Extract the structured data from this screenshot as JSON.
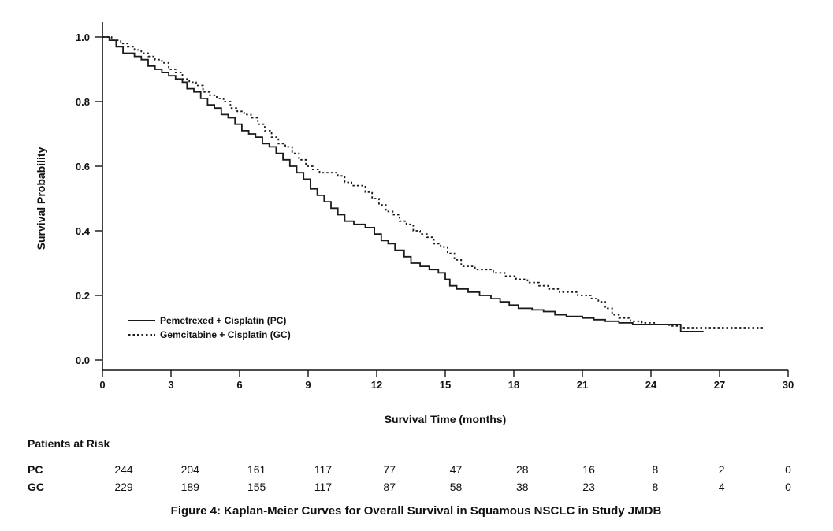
{
  "colors": {
    "line": "#1a1a1a",
    "text": "#111111",
    "background": "#ffffff"
  },
  "chart_data": {
    "type": "line",
    "subtype": "kaplan-meier-step",
    "title": "Figure 4: Kaplan-Meier Curves for Overall Survival in Squamous NSCLC in Study JMDB",
    "xlabel": "Survival Time (months)",
    "ylabel": "Survival Probability",
    "xlim": [
      0,
      30
    ],
    "ylim": [
      0.0,
      1.0
    ],
    "x_ticks": [
      0,
      3,
      6,
      9,
      12,
      15,
      18,
      21,
      24,
      27,
      30
    ],
    "y_ticks": [
      0.0,
      0.2,
      0.4,
      0.6,
      0.8,
      1.0
    ],
    "grid": false,
    "legend_position": "lower-left-inside",
    "series": [
      {
        "name": "Pemetrexed + Cisplatin (PC)",
        "line_style": "solid",
        "color": "#1a1a1a",
        "step": [
          [
            0,
            1.0
          ],
          [
            0.3,
            0.99
          ],
          [
            0.6,
            0.97
          ],
          [
            0.9,
            0.95
          ],
          [
            1.4,
            0.94
          ],
          [
            1.7,
            0.93
          ],
          [
            2.0,
            0.91
          ],
          [
            2.3,
            0.9
          ],
          [
            2.6,
            0.89
          ],
          [
            2.9,
            0.88
          ],
          [
            3.2,
            0.87
          ],
          [
            3.5,
            0.86
          ],
          [
            3.7,
            0.84
          ],
          [
            4.0,
            0.83
          ],
          [
            4.3,
            0.81
          ],
          [
            4.6,
            0.79
          ],
          [
            4.9,
            0.78
          ],
          [
            5.2,
            0.76
          ],
          [
            5.5,
            0.75
          ],
          [
            5.8,
            0.73
          ],
          [
            6.1,
            0.71
          ],
          [
            6.4,
            0.7
          ],
          [
            6.7,
            0.69
          ],
          [
            7.0,
            0.67
          ],
          [
            7.3,
            0.66
          ],
          [
            7.6,
            0.64
          ],
          [
            7.9,
            0.62
          ],
          [
            8.2,
            0.6
          ],
          [
            8.5,
            0.58
          ],
          [
            8.8,
            0.56
          ],
          [
            9.1,
            0.53
          ],
          [
            9.4,
            0.51
          ],
          [
            9.7,
            0.49
          ],
          [
            10.0,
            0.47
          ],
          [
            10.3,
            0.45
          ],
          [
            10.6,
            0.43
          ],
          [
            11.0,
            0.42
          ],
          [
            11.5,
            0.41
          ],
          [
            11.9,
            0.39
          ],
          [
            12.2,
            0.37
          ],
          [
            12.5,
            0.36
          ],
          [
            12.8,
            0.34
          ],
          [
            13.2,
            0.32
          ],
          [
            13.5,
            0.3
          ],
          [
            13.9,
            0.29
          ],
          [
            14.3,
            0.28
          ],
          [
            14.7,
            0.27
          ],
          [
            15.0,
            0.25
          ],
          [
            15.2,
            0.23
          ],
          [
            15.5,
            0.22
          ],
          [
            16.0,
            0.21
          ],
          [
            16.5,
            0.2
          ],
          [
            17.0,
            0.19
          ],
          [
            17.4,
            0.18
          ],
          [
            17.8,
            0.17
          ],
          [
            18.2,
            0.16
          ],
          [
            18.8,
            0.155
          ],
          [
            19.3,
            0.15
          ],
          [
            19.8,
            0.14
          ],
          [
            20.3,
            0.135
          ],
          [
            21.0,
            0.13
          ],
          [
            21.5,
            0.125
          ],
          [
            22.0,
            0.12
          ],
          [
            22.6,
            0.115
          ],
          [
            23.2,
            0.11
          ],
          [
            25.3,
            0.088
          ],
          [
            26.3,
            0.088
          ]
        ]
      },
      {
        "name": "Gemcitabine + Cisplatin (GC)",
        "line_style": "dotted",
        "color": "#1a1a1a",
        "step": [
          [
            0,
            1.0
          ],
          [
            0.4,
            0.99
          ],
          [
            0.8,
            0.98
          ],
          [
            1.1,
            0.97
          ],
          [
            1.4,
            0.96
          ],
          [
            1.7,
            0.95
          ],
          [
            2.0,
            0.94
          ],
          [
            2.3,
            0.93
          ],
          [
            2.6,
            0.92
          ],
          [
            2.9,
            0.9
          ],
          [
            3.2,
            0.89
          ],
          [
            3.5,
            0.87
          ],
          [
            3.8,
            0.86
          ],
          [
            4.1,
            0.85
          ],
          [
            4.4,
            0.83
          ],
          [
            4.7,
            0.82
          ],
          [
            5.0,
            0.81
          ],
          [
            5.3,
            0.8
          ],
          [
            5.6,
            0.78
          ],
          [
            5.9,
            0.77
          ],
          [
            6.2,
            0.76
          ],
          [
            6.5,
            0.75
          ],
          [
            6.8,
            0.73
          ],
          [
            7.1,
            0.71
          ],
          [
            7.4,
            0.69
          ],
          [
            7.7,
            0.67
          ],
          [
            8.0,
            0.66
          ],
          [
            8.3,
            0.64
          ],
          [
            8.6,
            0.62
          ],
          [
            8.9,
            0.6
          ],
          [
            9.2,
            0.59
          ],
          [
            9.5,
            0.58
          ],
          [
            10.3,
            0.57
          ],
          [
            10.6,
            0.55
          ],
          [
            10.9,
            0.54
          ],
          [
            11.5,
            0.52
          ],
          [
            11.8,
            0.5
          ],
          [
            12.1,
            0.48
          ],
          [
            12.4,
            0.46
          ],
          [
            12.7,
            0.45
          ],
          [
            13.0,
            0.43
          ],
          [
            13.3,
            0.42
          ],
          [
            13.6,
            0.4
          ],
          [
            13.9,
            0.39
          ],
          [
            14.2,
            0.38
          ],
          [
            14.5,
            0.36
          ],
          [
            14.8,
            0.35
          ],
          [
            15.1,
            0.33
          ],
          [
            15.4,
            0.31
          ],
          [
            15.7,
            0.29
          ],
          [
            16.3,
            0.28
          ],
          [
            17.1,
            0.27
          ],
          [
            17.6,
            0.26
          ],
          [
            18.1,
            0.25
          ],
          [
            18.6,
            0.24
          ],
          [
            19.1,
            0.23
          ],
          [
            19.5,
            0.22
          ],
          [
            20.0,
            0.21
          ],
          [
            20.8,
            0.2
          ],
          [
            21.4,
            0.19
          ],
          [
            21.7,
            0.18
          ],
          [
            22.0,
            0.16
          ],
          [
            22.3,
            0.14
          ],
          [
            22.6,
            0.13
          ],
          [
            23.1,
            0.12
          ],
          [
            23.6,
            0.115
          ],
          [
            24.2,
            0.11
          ],
          [
            24.8,
            0.105
          ],
          [
            25.3,
            0.1
          ],
          [
            29.0,
            0.1
          ]
        ]
      }
    ],
    "at_risk": {
      "label": "Patients at Risk",
      "time_points": [
        0,
        3,
        6,
        9,
        12,
        15,
        18,
        21,
        24,
        27,
        30
      ],
      "rows": [
        {
          "name": "PC",
          "counts": [
            244,
            204,
            161,
            117,
            77,
            47,
            28,
            16,
            8,
            2,
            0
          ]
        },
        {
          "name": "GC",
          "counts": [
            229,
            189,
            155,
            117,
            87,
            58,
            38,
            23,
            8,
            4,
            0
          ]
        }
      ]
    }
  }
}
